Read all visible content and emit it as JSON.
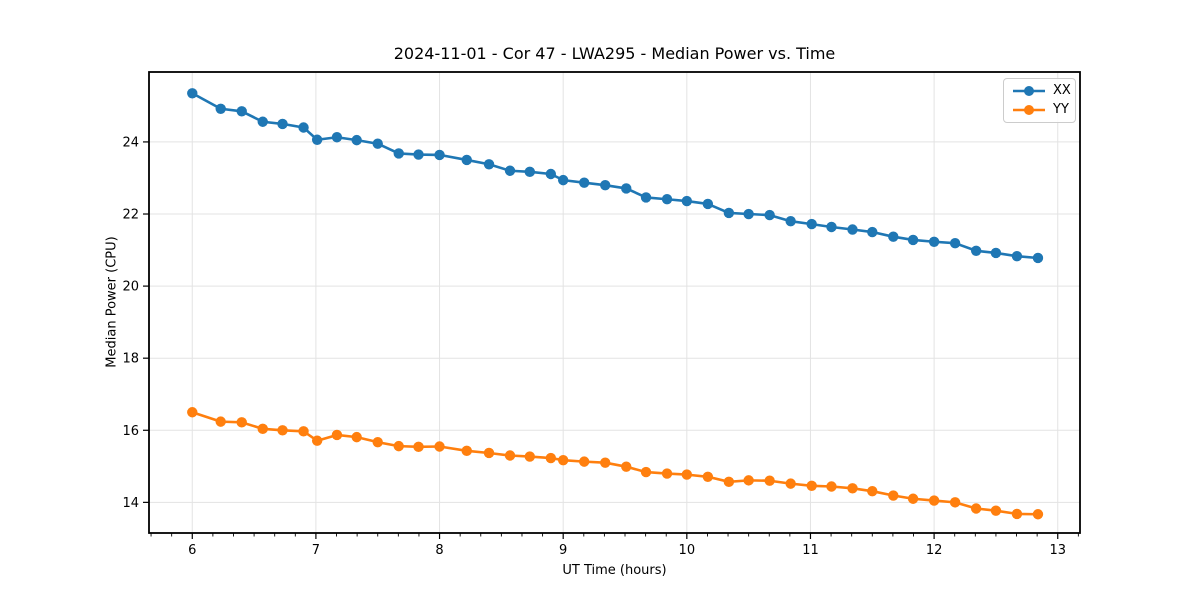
{
  "chart_data": {
    "type": "line",
    "title": "2024-11-01 - Cor 47 - LWA295 - Median Power vs. Time",
    "xlabel": "UT Time (hours)",
    "ylabel": "Median Power (CPU)",
    "xlim": [
      5.65,
      13.18
    ],
    "ylim": [
      13.15,
      25.94
    ],
    "xticks": [
      6,
      7,
      8,
      9,
      10,
      11,
      12,
      13
    ],
    "yticks": [
      14,
      16,
      18,
      20,
      22,
      24
    ],
    "x_minor_tick_interval_hours": 0.1667,
    "grid": true,
    "legend_position": "upper right",
    "x": [
      6.0,
      6.23,
      6.4,
      6.57,
      6.73,
      6.9,
      7.01,
      7.17,
      7.33,
      7.5,
      7.67,
      7.83,
      8.0,
      8.22,
      8.4,
      8.57,
      8.73,
      8.9,
      9.0,
      9.17,
      9.34,
      9.51,
      9.67,
      9.84,
      10.0,
      10.17,
      10.34,
      10.5,
      10.67,
      10.84,
      11.01,
      11.17,
      11.34,
      11.5,
      11.67,
      11.83,
      12.0,
      12.17,
      12.34,
      12.5,
      12.67,
      12.84
    ],
    "series": [
      {
        "name": "XX",
        "color": "#1f77b4",
        "marker": "circle",
        "values": [
          25.35,
          24.92,
          24.85,
          24.56,
          24.5,
          24.4,
          24.06,
          24.13,
          24.05,
          23.95,
          23.68,
          23.65,
          23.64,
          23.5,
          23.38,
          23.2,
          23.17,
          23.11,
          22.94,
          22.87,
          22.8,
          22.71,
          22.46,
          22.41,
          22.36,
          22.28,
          22.03,
          22.0,
          21.97,
          21.8,
          21.72,
          21.64,
          21.57,
          21.5,
          21.37,
          21.28,
          21.23,
          21.19,
          20.98,
          20.92,
          20.83,
          20.78
        ]
      },
      {
        "name": "YY",
        "color": "#ff7f0e",
        "marker": "circle",
        "values": [
          16.5,
          16.24,
          16.22,
          16.04,
          16.0,
          15.97,
          15.71,
          15.87,
          15.81,
          15.67,
          15.56,
          15.54,
          15.55,
          15.43,
          15.37,
          15.3,
          15.27,
          15.23,
          15.17,
          15.13,
          15.1,
          14.99,
          14.84,
          14.8,
          14.77,
          14.71,
          14.57,
          14.61,
          14.6,
          14.52,
          14.46,
          14.44,
          14.39,
          14.31,
          14.19,
          14.1,
          14.05,
          14.0,
          13.83,
          13.77,
          13.68,
          13.67
        ]
      }
    ]
  },
  "colors": {
    "grid": "#e3e3e3",
    "axis": "#000000",
    "text": "#000000",
    "legend_border": "#cccccc"
  }
}
